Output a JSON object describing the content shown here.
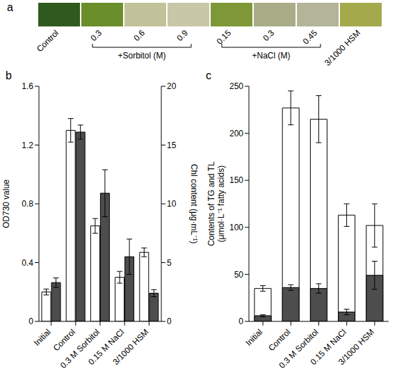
{
  "chart_data": [
    {
      "type": "swatch",
      "title": "a",
      "categories": [
        "Control",
        "0.3",
        "0.6",
        "0.9",
        "0.15",
        "0.3",
        "0.45",
        "3/1000 HSM"
      ],
      "colors": [
        "#2f5a1e",
        "#6a8e2a",
        "#c2c29a",
        "#c8c8a8",
        "#7e9838",
        "#a9ac86",
        "#b4b498",
        "#a4aa4c"
      ],
      "groups": [
        {
          "label": "+Sorbitol (M)",
          "start": 1,
          "end": 3
        },
        {
          "label": "+NaCl (M)",
          "start": 4,
          "end": 6
        }
      ]
    },
    {
      "type": "bar",
      "title": "b",
      "categories": [
        "Initial",
        "Control",
        "0.3 M Sorbitol",
        "0.15 M NaCl",
        "3/1000 HSM"
      ],
      "y_label": "OD730 value",
      "y2_label": "Chl content (μg·mL⁻¹)",
      "ylim": [
        0,
        1.6
      ],
      "yticks": [
        0,
        0.4,
        0.8,
        1.2,
        1.6
      ],
      "y2lim": [
        0,
        20
      ],
      "y2ticks": [
        0,
        5,
        10,
        15,
        20
      ],
      "series": [
        {
          "color": "#ffffff",
          "values": [
            0.2,
            1.3,
            0.65,
            0.3,
            0.47
          ],
          "errors": [
            0.02,
            0.08,
            0.05,
            0.04,
            0.03
          ]
        },
        {
          "color": "#4d4d4d",
          "axis": "y2",
          "values": [
            3.3,
            16.1,
            10.9,
            5.5,
            2.4
          ],
          "errors": [
            0.4,
            0.6,
            2.0,
            1.5,
            0.3
          ]
        }
      ]
    },
    {
      "type": "overlay",
      "title": "c",
      "categories": [
        "Initial",
        "Control",
        "0.3 M Sorbitol",
        "0.15 M NaCl",
        "3/1000 HSM"
      ],
      "y_label": [
        "Contents of TG and TL",
        "(μmol·L⁻¹ fatty acids)"
      ],
      "ylim": [
        0,
        250
      ],
      "yticks": [
        0,
        50,
        100,
        150,
        200,
        250
      ],
      "series": [
        {
          "color": "#ffffff",
          "values": [
            35,
            227,
            215,
            113,
            102
          ],
          "errors": [
            3,
            18,
            25,
            12,
            23
          ]
        },
        {
          "color": "#4d4d4d",
          "values": [
            6,
            36,
            35,
            10,
            49
          ],
          "errors": [
            1,
            3,
            5,
            3,
            15
          ]
        }
      ]
    }
  ]
}
